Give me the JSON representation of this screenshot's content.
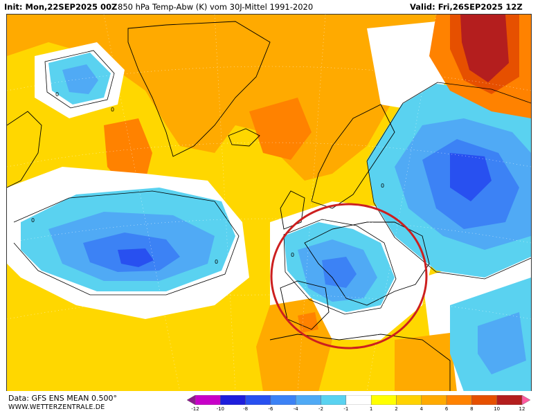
{
  "header": {
    "init": "Init: Mon,22SEP2025 00Z",
    "title": "850 hPa Temp-Abw (K) vom 30J-Mittel 1991-2020",
    "valid": "Valid: Fri,26SEP2025 12Z"
  },
  "footer": {
    "data_line": "Data: GFS ENS MEAN 0.500°",
    "site": "WWW.WETTERZENTRALE.DE"
  },
  "legend": {
    "tick_labels": [
      "-12",
      "-10",
      "-8",
      "-6",
      "-4",
      "-2",
      "-1",
      "1",
      "2",
      "4",
      "6",
      "8",
      "10",
      "12"
    ],
    "colors": [
      "#8c1a8c",
      "#c800c8",
      "#1e1edc",
      "#2850f0",
      "#3c82f5",
      "#50aaf5",
      "#5ad2f0",
      "#ffffff",
      "#ffff00",
      "#ffd200",
      "#ffaa00",
      "#ff8200",
      "#e65000",
      "#b41e1e",
      "#ff5aa0"
    ]
  },
  "map": {
    "contour_label": "0",
    "colors": {
      "neutral": "#ffffff",
      "warm1": "#ffff00",
      "warm2": "#ffd200",
      "warm3": "#ffaa00",
      "warm4": "#ff8200",
      "warm5": "#e65000",
      "hot": "#b41e1e",
      "cool1": "#5ad2f0",
      "cool2": "#50aaf5",
      "cool3": "#3c82f5",
      "cool4": "#2850f0",
      "highlight_circle": "#cc1f1f",
      "coast": "#000000"
    }
  }
}
